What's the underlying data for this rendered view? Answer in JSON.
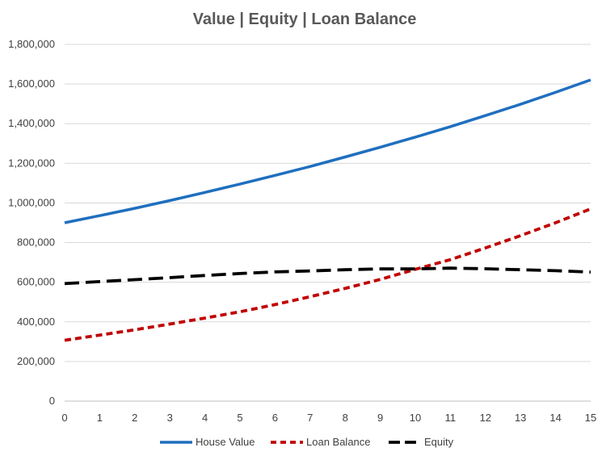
{
  "chart_data": {
    "type": "line",
    "title": "Value | Equity | Loan Balance",
    "xlabel": "",
    "ylabel": "",
    "x": [
      0,
      1,
      2,
      3,
      4,
      5,
      6,
      7,
      8,
      9,
      10,
      11,
      12,
      13,
      14,
      15
    ],
    "xlim": [
      0,
      15
    ],
    "ylim": [
      0,
      1800000
    ],
    "y_ticks": [
      0,
      200000,
      400000,
      600000,
      800000,
      1000000,
      1200000,
      1400000,
      1600000,
      1800000
    ],
    "y_tick_labels": [
      "0",
      "200,000",
      "400,000",
      "600,000",
      "800,000",
      "1,000,000",
      "1,200,000",
      "1,400,000",
      "1,600,000",
      "1,800,000"
    ],
    "x_tick_labels": [
      "0",
      "1",
      "2",
      "3",
      "4",
      "5",
      "6",
      "7",
      "8",
      "9",
      "10",
      "11",
      "12",
      "13",
      "14",
      "15"
    ],
    "grid": "horizontal",
    "legend_position": "bottom",
    "series": [
      {
        "name": "House Value",
        "color": "#1f6fbf",
        "style": "solid",
        "values": [
          900000,
          936000,
          973000,
          1012000,
          1053000,
          1095000,
          1139000,
          1184000,
          1232000,
          1281000,
          1332000,
          1385000,
          1441000,
          1498000,
          1558000,
          1621000
        ]
      },
      {
        "name": "Loan Balance",
        "color": "#c00000",
        "style": "dashed",
        "values": [
          307000,
          333000,
          360000,
          389000,
          419000,
          451000,
          487000,
          527000,
          569000,
          614000,
          665000,
          714000,
          773000,
          835000,
          900000,
          970000
        ]
      },
      {
        "name": "Equity",
        "color": "#000000",
        "style": "longdash",
        "values": [
          593000,
          603000,
          613000,
          623000,
          634000,
          644000,
          652000,
          657000,
          663000,
          667000,
          667000,
          671000,
          668000,
          663000,
          658000,
          651000
        ]
      }
    ]
  }
}
